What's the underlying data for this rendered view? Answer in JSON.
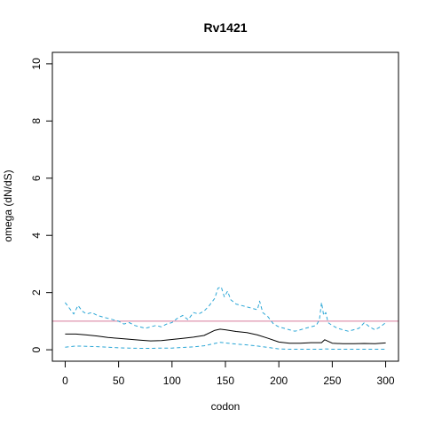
{
  "chart_data": {
    "type": "line",
    "title": "Rv1421",
    "xlabel": "codon",
    "ylabel": "omega (dN/dS)",
    "xlim": [
      -12,
      312
    ],
    "ylim": [
      -0.4,
      10.4
    ],
    "x_ticks": [
      0,
      50,
      100,
      150,
      200,
      250,
      300
    ],
    "y_ticks": [
      0,
      2,
      4,
      6,
      8,
      10
    ],
    "reference_line": {
      "y": 1,
      "color": "#d67a9a"
    },
    "colors": {
      "estimate": "#000000",
      "bounds": "#2aa6d6"
    },
    "series": [
      {
        "style": "solid",
        "x": [
          0,
          10,
          20,
          30,
          40,
          50,
          60,
          70,
          80,
          90,
          100,
          110,
          120,
          130,
          140,
          145,
          150,
          160,
          170,
          180,
          190,
          200,
          210,
          220,
          230,
          240,
          243,
          250,
          260,
          270,
          280,
          290,
          300
        ],
        "y": [
          0.55,
          0.55,
          0.52,
          0.48,
          0.43,
          0.4,
          0.37,
          0.34,
          0.31,
          0.32,
          0.36,
          0.4,
          0.44,
          0.5,
          0.68,
          0.72,
          0.7,
          0.64,
          0.6,
          0.52,
          0.4,
          0.27,
          0.23,
          0.23,
          0.25,
          0.25,
          0.35,
          0.23,
          0.21,
          0.21,
          0.22,
          0.21,
          0.24
        ]
      },
      {
        "style": "dashed",
        "x": [
          0,
          10,
          20,
          30,
          40,
          50,
          60,
          70,
          80,
          90,
          100,
          110,
          120,
          130,
          140,
          145,
          150,
          160,
          170,
          180,
          190,
          200,
          210,
          220,
          230,
          240,
          243,
          250,
          260,
          270,
          280,
          290,
          300
        ],
        "y": [
          0.09,
          0.13,
          0.12,
          0.11,
          0.09,
          0.07,
          0.06,
          0.05,
          0.05,
          0.06,
          0.06,
          0.08,
          0.1,
          0.14,
          0.22,
          0.26,
          0.24,
          0.2,
          0.17,
          0.13,
          0.08,
          0.03,
          0.02,
          0.02,
          0.02,
          0.02,
          0.03,
          0.02,
          0.02,
          0.02,
          0.02,
          0.02,
          0.02
        ]
      },
      {
        "style": "dashed",
        "x": [
          0,
          4,
          8,
          12,
          16,
          20,
          25,
          30,
          35,
          40,
          45,
          50,
          55,
          60,
          65,
          70,
          75,
          80,
          85,
          90,
          95,
          100,
          105,
          110,
          115,
          120,
          125,
          130,
          135,
          140,
          143,
          146,
          149,
          152,
          155,
          160,
          165,
          170,
          175,
          180,
          182,
          185,
          190,
          195,
          200,
          205,
          210,
          215,
          220,
          225,
          230,
          235,
          238,
          240,
          242,
          244,
          246,
          250,
          255,
          260,
          265,
          270,
          275,
          280,
          285,
          290,
          295,
          300
        ],
        "y": [
          1.65,
          1.45,
          1.25,
          1.55,
          1.35,
          1.25,
          1.3,
          1.2,
          1.15,
          1.1,
          1.05,
          1.0,
          0.9,
          0.95,
          0.85,
          0.8,
          0.75,
          0.8,
          0.85,
          0.8,
          0.9,
          0.95,
          1.1,
          1.2,
          1.05,
          1.3,
          1.25,
          1.35,
          1.55,
          1.8,
          2.15,
          2.2,
          1.85,
          2.05,
          1.75,
          1.6,
          1.55,
          1.5,
          1.45,
          1.4,
          1.7,
          1.3,
          1.15,
          0.9,
          0.8,
          0.75,
          0.7,
          0.65,
          0.7,
          0.75,
          0.8,
          0.85,
          1.05,
          1.65,
          1.2,
          1.3,
          0.95,
          0.85,
          0.75,
          0.7,
          0.65,
          0.7,
          0.75,
          0.95,
          0.8,
          0.7,
          0.8,
          0.95
        ]
      }
    ]
  }
}
